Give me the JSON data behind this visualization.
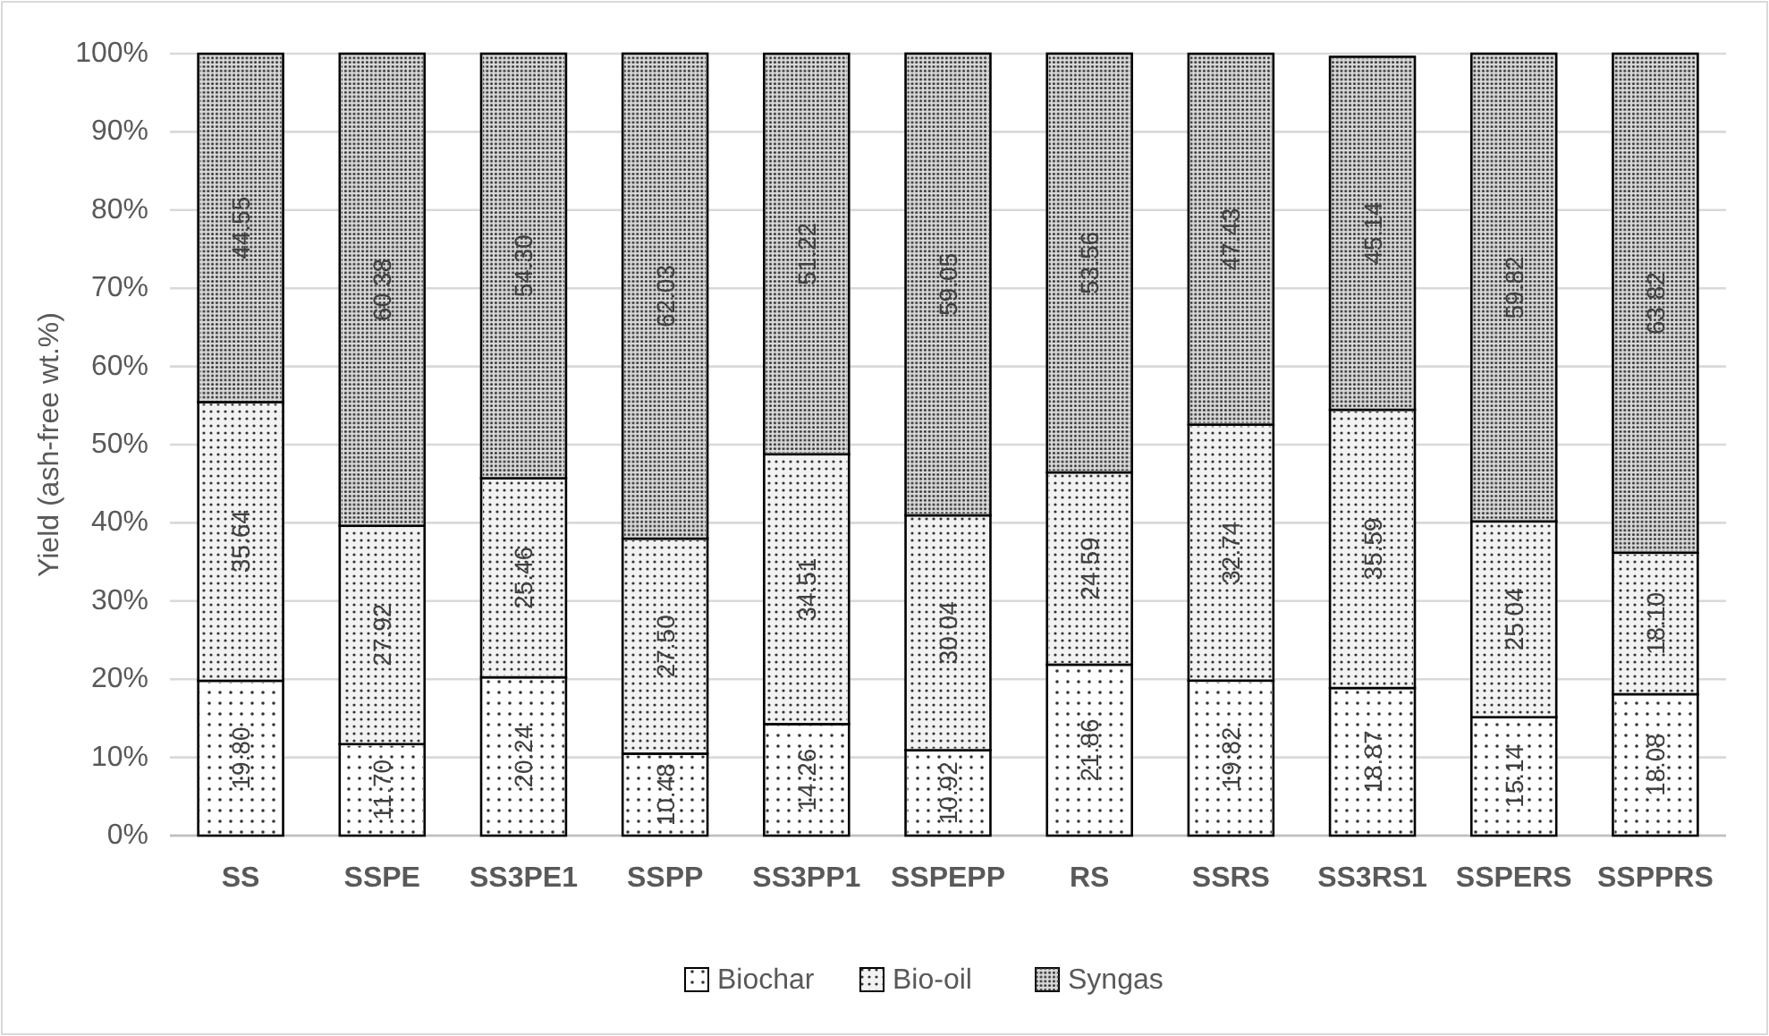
{
  "chart_data": {
    "type": "bar",
    "stacked": true,
    "ylabel": "Yield (ash-free wt.%)",
    "categories": [
      "SS",
      "SSPE",
      "SS3PE1",
      "SSPP",
      "SS3PP1",
      "SSPEPP",
      "RS",
      "SSRS",
      "SS3RS1",
      "SSPERS",
      "SSPPRS"
    ],
    "series": [
      {
        "name": "Biochar",
        "color": "#ffffff",
        "values": [
          19.8,
          11.7,
          20.24,
          10.48,
          14.26,
          10.92,
          21.86,
          19.82,
          18.87,
          15.14,
          18.08
        ],
        "value_labels": [
          "19.80",
          "11.70",
          "20.24",
          "10.48",
          "14.26",
          "10.92",
          "21.86",
          "19.82",
          "18.87",
          "15.14",
          "18.08"
        ]
      },
      {
        "name": "Bio-oil",
        "color": "#f2f2f2",
        "values": [
          35.64,
          27.92,
          25.46,
          27.5,
          34.51,
          30.04,
          24.59,
          32.74,
          35.59,
          25.04,
          18.1
        ],
        "value_labels": [
          "35.64",
          "27.92",
          "25.46",
          "27.50",
          "34.51",
          "30.04",
          "24.59",
          "32.74",
          "35.59",
          "25.04",
          "18.10"
        ]
      },
      {
        "name": "Syngas",
        "color": "#d9d9d9",
        "values": [
          44.55,
          60.38,
          54.3,
          62.03,
          51.22,
          59.05,
          53.56,
          47.43,
          45.14,
          59.82,
          63.82
        ],
        "value_labels": [
          "44.55",
          "60.38",
          "54.30",
          "62.03",
          "51.22",
          "59.05",
          "53.56",
          "47.43",
          "45.14",
          "59.82",
          "63.82"
        ]
      }
    ],
    "ylim": [
      0,
      100
    ],
    "yticks": [
      {
        "value": 0,
        "label": "0%"
      },
      {
        "value": 10,
        "label": "10%"
      },
      {
        "value": 20,
        "label": "20%"
      },
      {
        "value": 30,
        "label": "30%"
      },
      {
        "value": 40,
        "label": "40%"
      },
      {
        "value": 50,
        "label": "50%"
      },
      {
        "value": 60,
        "label": "60%"
      },
      {
        "value": 70,
        "label": "70%"
      },
      {
        "value": 80,
        "label": "80%"
      },
      {
        "value": 90,
        "label": "90%"
      },
      {
        "value": 100,
        "label": "100%"
      }
    ],
    "grid": "y",
    "legend": "bottom"
  }
}
